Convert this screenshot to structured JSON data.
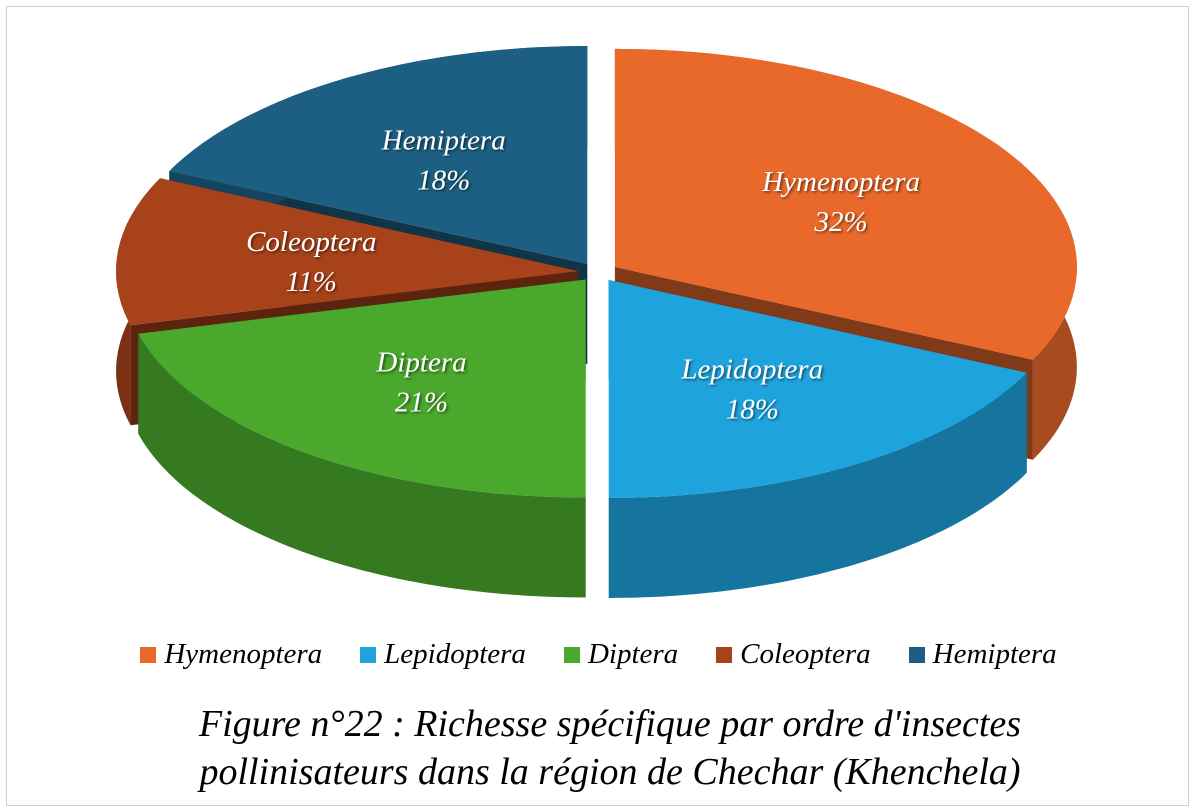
{
  "chart_data": {
    "type": "pie",
    "title": "Figure n°22 : Richesse spécifique par ordre d'insectes pollinisateurs dans la région de Chechar  (Khenchela)",
    "categories": [
      "Hymenoptera",
      "Lepidoptera",
      "Diptera",
      "Coleoptera",
      "Hemiptera"
    ],
    "values": [
      32,
      18,
      21,
      11,
      18
    ],
    "value_labels": [
      "32%",
      "18%",
      "21%",
      "11%",
      "18%"
    ],
    "colors": [
      "#e8692a",
      "#1fa3dc",
      "#4aa82c",
      "#a8421a",
      "#1d5f82"
    ],
    "legend": "bottom"
  }
}
